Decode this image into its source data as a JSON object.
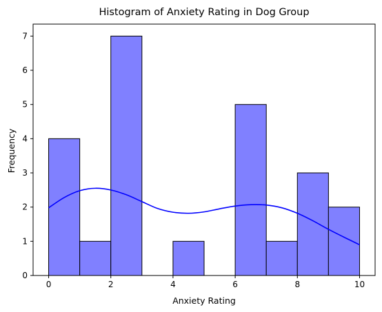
{
  "chart_data": {
    "type": "bar",
    "title": "Histogram of Anxiety Rating in Dog Group",
    "xlabel": "Anxiety Rating",
    "ylabel": "Frequency",
    "bins": [
      {
        "x0": 0,
        "x1": 1,
        "count": 4
      },
      {
        "x0": 1,
        "x1": 2,
        "count": 1
      },
      {
        "x0": 2,
        "x1": 3,
        "count": 7
      },
      {
        "x0": 3,
        "x1": 4,
        "count": 0
      },
      {
        "x0": 4,
        "x1": 5,
        "count": 1
      },
      {
        "x0": 5,
        "x1": 6,
        "count": 0
      },
      {
        "x0": 6,
        "x1": 7,
        "count": 5
      },
      {
        "x0": 7,
        "x1": 8,
        "count": 1
      },
      {
        "x0": 8,
        "x1": 9,
        "count": 3
      },
      {
        "x0": 9,
        "x1": 10,
        "count": 2
      }
    ],
    "kde_curve": {
      "x": [
        0,
        0.5,
        1,
        1.5,
        2,
        2.5,
        3,
        3.5,
        4,
        4.5,
        5,
        5.5,
        6,
        6.5,
        7,
        7.5,
        8,
        8.5,
        9,
        9.5,
        10
      ],
      "y": [
        1.98,
        2.28,
        2.48,
        2.55,
        2.5,
        2.36,
        2.16,
        1.96,
        1.85,
        1.82,
        1.86,
        1.95,
        2.03,
        2.07,
        2.06,
        1.98,
        1.82,
        1.6,
        1.35,
        1.12,
        0.9
      ]
    },
    "xlim": [
      -0.5,
      10.5
    ],
    "ylim": [
      0,
      7.35
    ],
    "xticks": [
      0,
      2,
      4,
      6,
      8,
      10
    ],
    "yticks": [
      0,
      1,
      2,
      3,
      4,
      5,
      6,
      7
    ],
    "grid": false,
    "colors": {
      "bar_fill": "#8080ff",
      "bar_edge": "#000000",
      "kde_line": "#0000ff"
    }
  }
}
